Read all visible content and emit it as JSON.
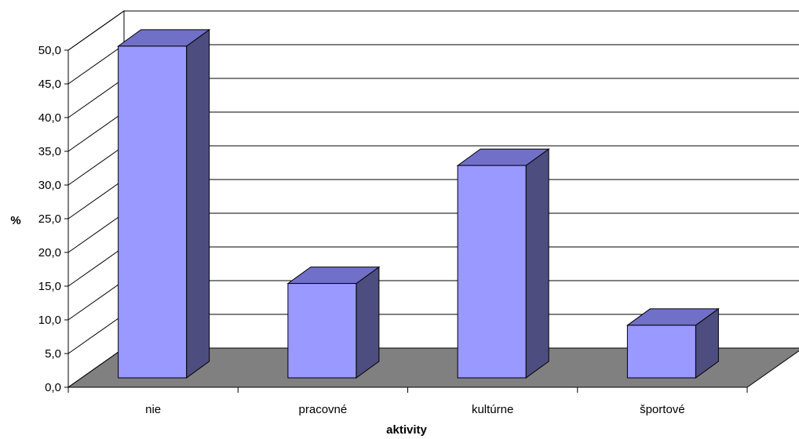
{
  "chart_data": {
    "type": "bar",
    "style": "3d-column",
    "categories": [
      "nie",
      "pracovné",
      "kultúrne",
      "športové"
    ],
    "values": [
      49.2,
      14.0,
      31.5,
      7.8
    ],
    "xlabel": "aktivity",
    "ylabel": "%",
    "ylim": [
      0,
      50
    ],
    "ytick_step": 5,
    "ytick_labels": [
      "0,0",
      "5,0",
      "10,0",
      "15,0",
      "20,0",
      "25,0",
      "30,0",
      "35,0",
      "40,0",
      "45,0",
      "50,0"
    ],
    "grid": true,
    "colors": {
      "bar_front": "#9999ff",
      "bar_top": "#7070c8",
      "bar_side": "#4d4d80",
      "floor": "#808080",
      "gridline": "#000000"
    }
  }
}
